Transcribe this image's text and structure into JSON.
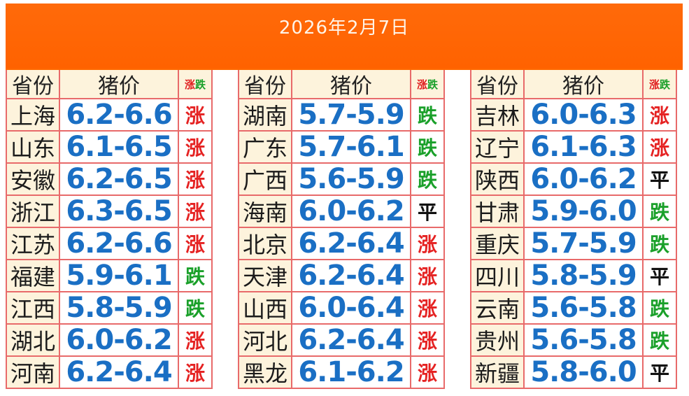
{
  "title": "2026年2月7日",
  "headers": {
    "province": "省份",
    "price": "猪价",
    "trend_up": "涨",
    "trend_down": "跌"
  },
  "colors": {
    "banner": "#ff6a00",
    "price": "#1a6fc4",
    "up": "#e52222",
    "down": "#1aa02a",
    "flat": "#111111",
    "header_bg": "#fdf3dc",
    "grid_line": "#e86a6a"
  },
  "blocks": [
    {
      "rows": [
        {
          "province": "上海",
          "price": "6.2-6.6",
          "trend": "涨",
          "kind": "up"
        },
        {
          "province": "山东",
          "price": "6.1-6.5",
          "trend": "涨",
          "kind": "up"
        },
        {
          "province": "安徽",
          "price": "6.2-6.5",
          "trend": "涨",
          "kind": "up"
        },
        {
          "province": "浙江",
          "price": "6.3-6.5",
          "trend": "涨",
          "kind": "up"
        },
        {
          "province": "江苏",
          "price": "6.2-6.6",
          "trend": "涨",
          "kind": "up"
        },
        {
          "province": "福建",
          "price": "5.9-6.1",
          "trend": "跌",
          "kind": "down"
        },
        {
          "province": "江西",
          "price": "5.8-5.9",
          "trend": "跌",
          "kind": "down"
        },
        {
          "province": "湖北",
          "price": "6.0-6.2",
          "trend": "涨",
          "kind": "up"
        },
        {
          "province": "河南",
          "price": "6.2-6.4",
          "trend": "涨",
          "kind": "up"
        }
      ]
    },
    {
      "rows": [
        {
          "province": "湖南",
          "price": "5.7-5.9",
          "trend": "跌",
          "kind": "down"
        },
        {
          "province": "广东",
          "price": "5.7-6.1",
          "trend": "跌",
          "kind": "down"
        },
        {
          "province": "广西",
          "price": "5.6-5.9",
          "trend": "跌",
          "kind": "down"
        },
        {
          "province": "海南",
          "price": "6.0-6.2",
          "trend": "平",
          "kind": "flat"
        },
        {
          "province": "北京",
          "price": "6.2-6.4",
          "trend": "涨",
          "kind": "up"
        },
        {
          "province": "天津",
          "price": "6.2-6.4",
          "trend": "涨",
          "kind": "up"
        },
        {
          "province": "山西",
          "price": "6.0-6.4",
          "trend": "涨",
          "kind": "up"
        },
        {
          "province": "河北",
          "price": "6.2-6.4",
          "trend": "涨",
          "kind": "up"
        },
        {
          "province": "黑龙",
          "price": "6.1-6.2",
          "trend": "涨",
          "kind": "up"
        }
      ]
    },
    {
      "rows": [
        {
          "province": "吉林",
          "price": "6.0-6.3",
          "trend": "涨",
          "kind": "up"
        },
        {
          "province": "辽宁",
          "price": "6.1-6.3",
          "trend": "涨",
          "kind": "up"
        },
        {
          "province": "陕西",
          "price": "6.0-6.2",
          "trend": "平",
          "kind": "flat"
        },
        {
          "province": "甘肃",
          "price": "5.9-6.0",
          "trend": "跌",
          "kind": "down"
        },
        {
          "province": "重庆",
          "price": "5.7-5.9",
          "trend": "跌",
          "kind": "down"
        },
        {
          "province": "四川",
          "price": "5.8-5.9",
          "trend": "平",
          "kind": "flat"
        },
        {
          "province": "云南",
          "price": "5.6-5.8",
          "trend": "跌",
          "kind": "down"
        },
        {
          "province": "贵州",
          "price": "5.6-5.8",
          "trend": "跌",
          "kind": "down"
        },
        {
          "province": "新疆",
          "price": "5.8-6.0",
          "trend": "平",
          "kind": "flat"
        }
      ]
    }
  ]
}
